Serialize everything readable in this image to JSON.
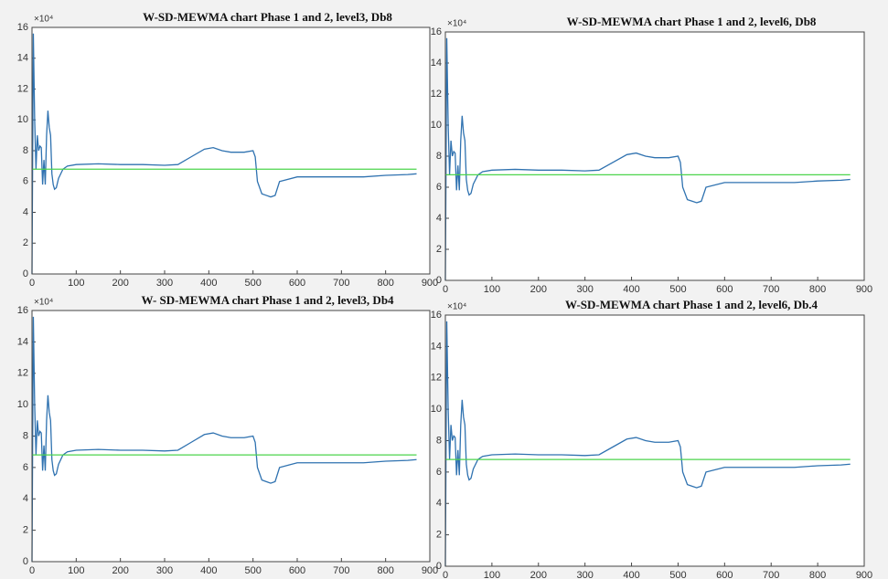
{
  "chart_data": [
    {
      "type": "line",
      "title": "W-SD-MEWMA chart Phase 1 and 2, level3, Db8",
      "y_multiplier": "×10⁴",
      "xlim": [
        0,
        900
      ],
      "xticks": [
        0,
        100,
        200,
        300,
        400,
        500,
        600,
        700,
        800,
        900
      ],
      "ylim": [
        0,
        16
      ],
      "yticks": [
        0,
        2,
        4,
        6,
        8,
        10,
        12,
        14,
        16
      ],
      "series": [
        {
          "color": "#2f72b0",
          "x": [
            0,
            3,
            6,
            9,
            12,
            15,
            18,
            21,
            24,
            27,
            30,
            33,
            36,
            39,
            42,
            45,
            48,
            51,
            55,
            60,
            70,
            80,
            100,
            150,
            200,
            250,
            300,
            330,
            360,
            390,
            410,
            430,
            450,
            480,
            500,
            505,
            510,
            520,
            530,
            540,
            550,
            560,
            600,
            650,
            700,
            750,
            800,
            850,
            870
          ],
          "values": [
            0,
            15.6,
            10,
            6.8,
            9,
            8,
            8.3,
            8.2,
            5.8,
            7.4,
            5.8,
            9,
            10.6,
            9.5,
            9,
            6.5,
            5.8,
            5.5,
            5.6,
            6.2,
            6.8,
            7,
            7.1,
            7.15,
            7.1,
            7.1,
            7.05,
            7.1,
            7.6,
            8.1,
            8.2,
            8.0,
            7.9,
            7.9,
            8.0,
            7.6,
            6.0,
            5.2,
            5.1,
            5.0,
            5.1,
            6.0,
            6.3,
            6.3,
            6.3,
            6.3,
            6.4,
            6.45,
            6.5
          ]
        },
        {
          "color": "#4cd44c",
          "x": [
            0,
            870
          ],
          "values": [
            6.8,
            6.8
          ]
        }
      ]
    },
    {
      "type": "line",
      "title": "W-SD-MEWMA chart Phase 1 and 2, level6, Db8",
      "y_multiplier": "×10⁴",
      "xlim": [
        0,
        900
      ],
      "xticks": [
        0,
        100,
        200,
        300,
        400,
        500,
        600,
        700,
        800,
        900
      ],
      "ylim": [
        0,
        16
      ],
      "yticks": [
        0,
        2,
        4,
        6,
        8,
        10,
        12,
        14,
        16
      ],
      "series": [
        {
          "color": "#2f72b0",
          "x": [
            0,
            3,
            6,
            9,
            12,
            15,
            18,
            21,
            24,
            27,
            30,
            33,
            36,
            39,
            42,
            45,
            48,
            51,
            55,
            60,
            70,
            80,
            100,
            150,
            200,
            250,
            300,
            330,
            360,
            390,
            410,
            430,
            450,
            480,
            500,
            505,
            510,
            520,
            530,
            540,
            550,
            560,
            600,
            650,
            700,
            750,
            800,
            850,
            870
          ],
          "values": [
            0,
            15.6,
            10,
            6.8,
            9,
            8,
            8.3,
            8.2,
            5.8,
            7.4,
            5.8,
            9,
            10.6,
            9.5,
            9,
            6.5,
            5.8,
            5.5,
            5.6,
            6.2,
            6.8,
            7,
            7.1,
            7.15,
            7.1,
            7.1,
            7.05,
            7.1,
            7.6,
            8.1,
            8.2,
            8.0,
            7.9,
            7.9,
            8.0,
            7.6,
            6.0,
            5.2,
            5.1,
            5.0,
            5.1,
            6.0,
            6.3,
            6.3,
            6.3,
            6.3,
            6.4,
            6.45,
            6.5
          ]
        },
        {
          "color": "#4cd44c",
          "x": [
            0,
            870
          ],
          "values": [
            6.8,
            6.8
          ]
        }
      ]
    },
    {
      "type": "line",
      "title": "W- SD-MEWMA chart Phase 1 and 2, level3, Db4",
      "y_multiplier": "×10⁴",
      "xlim": [
        0,
        900
      ],
      "xticks": [
        0,
        100,
        200,
        300,
        400,
        500,
        600,
        700,
        800,
        900
      ],
      "ylim": [
        0,
        16
      ],
      "yticks": [
        0,
        2,
        4,
        6,
        8,
        10,
        12,
        14,
        16
      ],
      "series": [
        {
          "color": "#2f72b0",
          "x": [
            0,
            3,
            6,
            9,
            12,
            15,
            18,
            21,
            24,
            27,
            30,
            33,
            36,
            39,
            42,
            45,
            48,
            51,
            55,
            60,
            70,
            80,
            100,
            150,
            200,
            250,
            300,
            330,
            360,
            390,
            410,
            430,
            450,
            480,
            500,
            505,
            510,
            520,
            530,
            540,
            550,
            560,
            600,
            650,
            700,
            750,
            800,
            850,
            870
          ],
          "values": [
            0,
            15.6,
            10,
            6.8,
            9,
            8,
            8.3,
            8.2,
            5.8,
            7.4,
            5.8,
            9,
            10.6,
            9.5,
            9,
            6.5,
            5.8,
            5.5,
            5.6,
            6.2,
            6.8,
            7,
            7.1,
            7.15,
            7.1,
            7.1,
            7.05,
            7.1,
            7.6,
            8.1,
            8.2,
            8.0,
            7.9,
            7.9,
            8.0,
            7.6,
            6.0,
            5.2,
            5.1,
            5.0,
            5.1,
            6.0,
            6.3,
            6.3,
            6.3,
            6.3,
            6.4,
            6.45,
            6.5
          ]
        },
        {
          "color": "#4cd44c",
          "x": [
            0,
            870
          ],
          "values": [
            6.8,
            6.8
          ]
        }
      ]
    },
    {
      "type": "line",
      "title": "W-SD-MEWMA chart Phase 1 and 2, level6, Db.4",
      "y_multiplier": "×10⁴",
      "xlim": [
        0,
        900
      ],
      "xticks": [
        0,
        100,
        200,
        300,
        400,
        500,
        600,
        700,
        800,
        900
      ],
      "ylim": [
        0,
        16
      ],
      "yticks": [
        0,
        2,
        4,
        6,
        8,
        10,
        12,
        14,
        16
      ],
      "series": [
        {
          "color": "#2f72b0",
          "x": [
            0,
            3,
            6,
            9,
            12,
            15,
            18,
            21,
            24,
            27,
            30,
            33,
            36,
            39,
            42,
            45,
            48,
            51,
            55,
            60,
            70,
            80,
            100,
            150,
            200,
            250,
            300,
            330,
            360,
            390,
            410,
            430,
            450,
            480,
            500,
            505,
            510,
            520,
            530,
            540,
            550,
            560,
            600,
            650,
            700,
            750,
            800,
            850,
            870
          ],
          "values": [
            0,
            15.6,
            10,
            6.8,
            9,
            8,
            8.3,
            8.2,
            5.8,
            7.4,
            5.8,
            9,
            10.6,
            9.5,
            9,
            6.5,
            5.8,
            5.5,
            5.6,
            6.2,
            6.8,
            7,
            7.1,
            7.15,
            7.1,
            7.1,
            7.05,
            7.1,
            7.6,
            8.1,
            8.2,
            8.0,
            7.9,
            7.9,
            8.0,
            7.6,
            6.0,
            5.2,
            5.1,
            5.0,
            5.1,
            6.0,
            6.3,
            6.3,
            6.3,
            6.3,
            6.4,
            6.45,
            6.5
          ]
        },
        {
          "color": "#4cd44c",
          "x": [
            0,
            870
          ],
          "values": [
            6.8,
            6.8
          ]
        }
      ]
    }
  ]
}
